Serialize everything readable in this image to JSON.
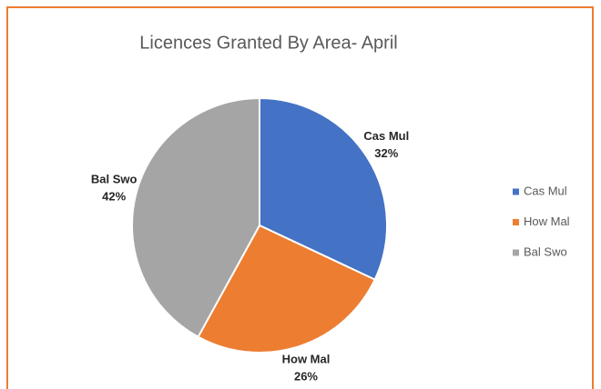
{
  "chart_data": {
    "type": "pie",
    "title": "Licences Granted By Area- April",
    "categories": [
      "Cas Mul",
      "How Mal",
      "Bal Swo"
    ],
    "values": [
      32,
      26,
      42
    ],
    "value_labels": [
      "32%",
      "26%",
      "42%"
    ],
    "colors": [
      "#4472c4",
      "#ed7d31",
      "#a5a5a5"
    ],
    "legend": "right"
  }
}
